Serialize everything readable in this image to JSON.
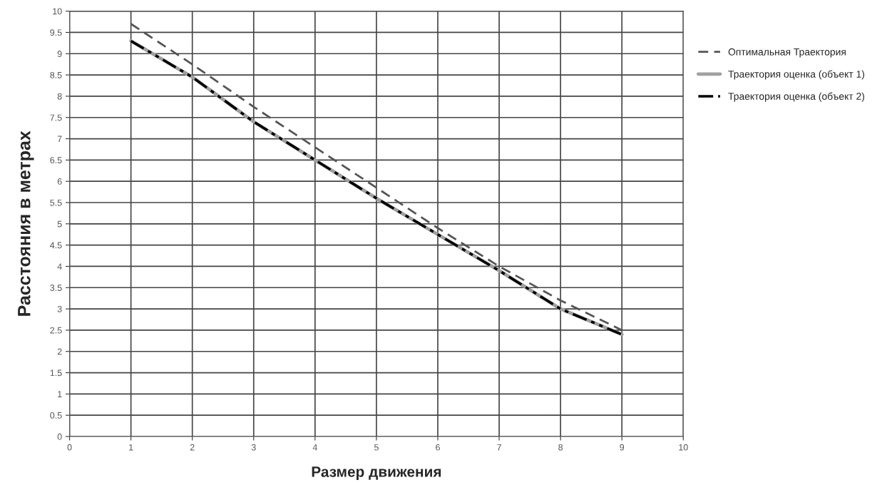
{
  "chart_data": {
    "type": "line",
    "xlabel": "Размер движения",
    "ylabel": "Расстояния в метрах",
    "x": [
      1,
      2,
      3,
      4,
      5,
      6,
      7,
      8,
      9
    ],
    "series": [
      {
        "name": "Оптимальная Траектория",
        "color": "#555555",
        "line_style": "dashed",
        "values": [
          9.7,
          8.75,
          7.75,
          6.8,
          5.85,
          4.9,
          4.0,
          3.2,
          2.5
        ]
      },
      {
        "name": "Траектория оценка (объект 1)",
        "color": "#a0a0a0",
        "line_style": "solid",
        "values": [
          9.3,
          8.45,
          7.4,
          6.5,
          5.6,
          4.75,
          3.9,
          3.0,
          2.4
        ]
      },
      {
        "name": "Траектория оценка (объект 2)",
        "color": "#000000",
        "line_style": "dashdotdot",
        "values": [
          9.3,
          8.45,
          7.4,
          6.5,
          5.6,
          4.75,
          3.9,
          3.0,
          2.4
        ]
      }
    ],
    "xlim": [
      0,
      10
    ],
    "xticks": [
      0,
      1,
      2,
      3,
      4,
      5,
      6,
      7,
      8,
      9,
      10
    ],
    "ylim": [
      0,
      10
    ],
    "yticks": [
      0,
      0.5,
      1,
      1.5,
      2,
      2.5,
      3,
      3.5,
      4,
      4.5,
      5,
      5.5,
      6,
      6.5,
      7,
      7.5,
      8,
      8.5,
      9,
      9.5,
      10
    ],
    "grid": true,
    "legend": "right",
    "marker": "none"
  }
}
